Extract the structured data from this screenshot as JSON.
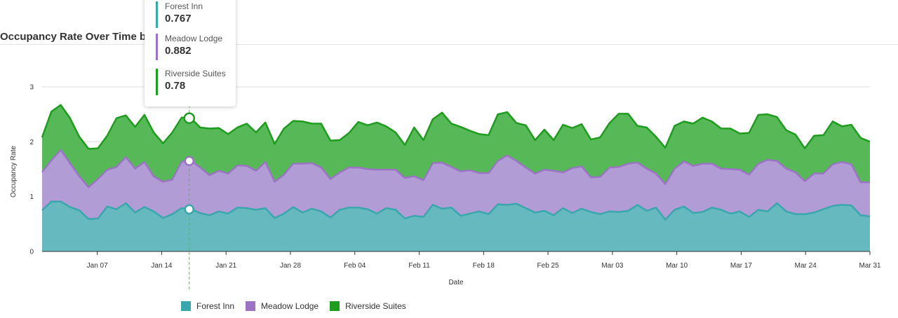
{
  "chart_data": {
    "type": "area",
    "stacked": true,
    "title": "Occupancy Rate Over Time b",
    "xlabel": "Date",
    "ylabel": "Occupancy Rate",
    "ylim": [
      0,
      3
    ],
    "yticks": [
      "0",
      "1",
      "2",
      "3"
    ],
    "xlim": [
      "2024-01-01",
      "2024-03-31"
    ],
    "xticks": [
      {
        "date": "2024-01-07",
        "label": "Jan 07"
      },
      {
        "date": "2024-01-14",
        "label": "Jan 14"
      },
      {
        "date": "2024-01-21",
        "label": "Jan 21"
      },
      {
        "date": "2024-01-28",
        "label": "Jan 28"
      },
      {
        "date": "2024-02-04",
        "label": "Feb 04"
      },
      {
        "date": "2024-02-11",
        "label": "Feb 11"
      },
      {
        "date": "2024-02-18",
        "label": "Feb 18"
      },
      {
        "date": "2024-02-25",
        "label": "Feb 25"
      },
      {
        "date": "2024-03-03",
        "label": "Mar 03"
      },
      {
        "date": "2024-03-10",
        "label": "Mar 10"
      },
      {
        "date": "2024-03-17",
        "label": "Mar 17"
      },
      {
        "date": "2024-03-24",
        "label": "Mar 24"
      },
      {
        "date": "2024-03-31",
        "label": "Mar 31"
      }
    ],
    "grid": true,
    "legend_position": "bottom",
    "series": [
      {
        "name": "Forest Inn",
        "color": "#3aa7ad",
        "fill": "#66b9be",
        "values": [
          0.75,
          0.91,
          0.91,
          0.81,
          0.75,
          0.59,
          0.6,
          0.82,
          0.77,
          0.88,
          0.71,
          0.81,
          0.73,
          0.61,
          0.68,
          0.79,
          0.77,
          0.7,
          0.66,
          0.73,
          0.69,
          0.8,
          0.79,
          0.76,
          0.79,
          0.61,
          0.69,
          0.81,
          0.71,
          0.78,
          0.73,
          0.62,
          0.76,
          0.8,
          0.8,
          0.77,
          0.69,
          0.79,
          0.76,
          0.6,
          0.65,
          0.63,
          0.85,
          0.78,
          0.8,
          0.65,
          0.69,
          0.73,
          0.68,
          0.86,
          0.85,
          0.87,
          0.79,
          0.71,
          0.74,
          0.66,
          0.79,
          0.7,
          0.78,
          0.72,
          0.68,
          0.73,
          0.72,
          0.74,
          0.85,
          0.74,
          0.8,
          0.58,
          0.76,
          0.82,
          0.7,
          0.72,
          0.8,
          0.76,
          0.69,
          0.73,
          0.63,
          0.76,
          0.73,
          0.88,
          0.73,
          0.68,
          0.68,
          0.71,
          0.77,
          0.83,
          0.85,
          0.84,
          0.66,
          0.64
        ]
      },
      {
        "name": "Meadow Lodge",
        "color": "#9b74c4",
        "fill": "#b29cd6",
        "values": [
          0.7,
          0.75,
          0.94,
          0.8,
          0.62,
          0.58,
          0.72,
          0.67,
          0.77,
          0.84,
          0.8,
          0.82,
          0.64,
          0.66,
          0.63,
          0.85,
          0.88,
          0.83,
          0.73,
          0.74,
          0.73,
          0.77,
          0.77,
          0.71,
          0.84,
          0.66,
          0.71,
          0.79,
          0.89,
          0.83,
          0.8,
          0.7,
          0.68,
          0.73,
          0.73,
          0.73,
          0.8,
          0.7,
          0.73,
          0.74,
          0.72,
          0.67,
          0.76,
          0.84,
          0.74,
          0.81,
          0.79,
          0.7,
          0.75,
          0.79,
          0.9,
          0.78,
          0.74,
          0.71,
          0.75,
          0.81,
          0.65,
          0.82,
          0.77,
          0.63,
          0.68,
          0.8,
          0.82,
          0.86,
          0.77,
          0.77,
          0.62,
          0.65,
          0.75,
          0.82,
          0.86,
          0.88,
          0.8,
          0.75,
          0.81,
          0.76,
          0.77,
          0.84,
          0.94,
          0.77,
          0.78,
          0.76,
          0.6,
          0.71,
          0.65,
          0.76,
          0.78,
          0.75,
          0.6,
          0.62
        ]
      },
      {
        "name": "Riverside Suites",
        "color": "#1e9c1e",
        "fill": "#57b857",
        "values": [
          0.63,
          0.89,
          0.82,
          0.82,
          0.72,
          0.7,
          0.56,
          0.62,
          0.89,
          0.76,
          0.76,
          0.86,
          0.8,
          0.7,
          0.86,
          0.8,
          0.78,
          0.73,
          0.85,
          0.78,
          0.72,
          0.69,
          0.77,
          0.7,
          0.72,
          0.69,
          0.84,
          0.78,
          0.77,
          0.72,
          0.8,
          0.7,
          0.59,
          0.63,
          0.83,
          0.8,
          0.86,
          0.79,
          0.68,
          0.6,
          0.89,
          0.73,
          0.8,
          0.91,
          0.79,
          0.81,
          0.72,
          0.71,
          0.69,
          0.85,
          0.79,
          0.69,
          0.77,
          0.61,
          0.73,
          0.56,
          0.87,
          0.73,
          0.77,
          0.69,
          0.72,
          0.81,
          0.97,
          0.91,
          0.67,
          0.75,
          0.67,
          0.66,
          0.78,
          0.73,
          0.77,
          0.84,
          0.77,
          0.73,
          0.74,
          0.66,
          0.76,
          0.89,
          0.83,
          0.8,
          0.7,
          0.69,
          0.6,
          0.69,
          0.7,
          0.78,
          0.65,
          0.72,
          0.81,
          0.74
        ]
      }
    ],
    "hover_date": "2024-01-17",
    "tooltip": [
      {
        "name": "Forest Inn",
        "value": "0.767"
      },
      {
        "name": "Meadow Lodge",
        "value": "0.882"
      },
      {
        "name": "Riverside Suites",
        "value": "0.78"
      }
    ]
  }
}
